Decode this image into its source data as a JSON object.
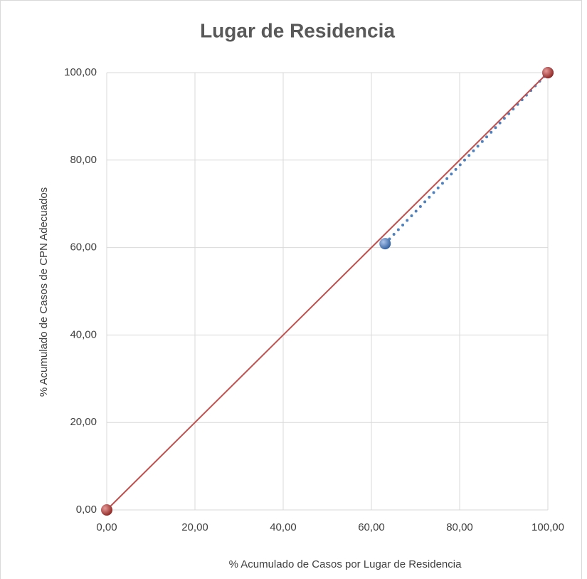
{
  "chart_data": {
    "type": "scatter",
    "title": "Lugar de Residencia",
    "x_label": "% Acumulado de Casos por Lugar de Residencia",
    "y_label": "% Acumulado de Casos de CPN Adecuados",
    "xlim": [
      0,
      100
    ],
    "ylim": [
      0,
      100
    ],
    "xticks": [
      {
        "value": 0,
        "label": "0,00"
      },
      {
        "value": 20,
        "label": "20,00"
      },
      {
        "value": 40,
        "label": "40,00"
      },
      {
        "value": 60,
        "label": "60,00"
      },
      {
        "value": 80,
        "label": "80,00"
      },
      {
        "value": 100,
        "label": "100,00"
      }
    ],
    "yticks": [
      {
        "value": 0,
        "label": "0,00"
      },
      {
        "value": 20,
        "label": "20,00"
      },
      {
        "value": 40,
        "label": "40,00"
      },
      {
        "value": 60,
        "label": "60,00"
      },
      {
        "value": 80,
        "label": "80,00"
      },
      {
        "value": 100,
        "label": "100,00"
      }
    ],
    "grid": true,
    "series": [
      {
        "color": "#4f81bd",
        "line": "dotted",
        "x": [
          63.1,
          100
        ],
        "values": [
          60.9,
          100
        ]
      },
      {
        "color": "#c0504d",
        "line": "solid",
        "x": [
          0,
          100
        ],
        "values": [
          0,
          100
        ]
      }
    ]
  }
}
